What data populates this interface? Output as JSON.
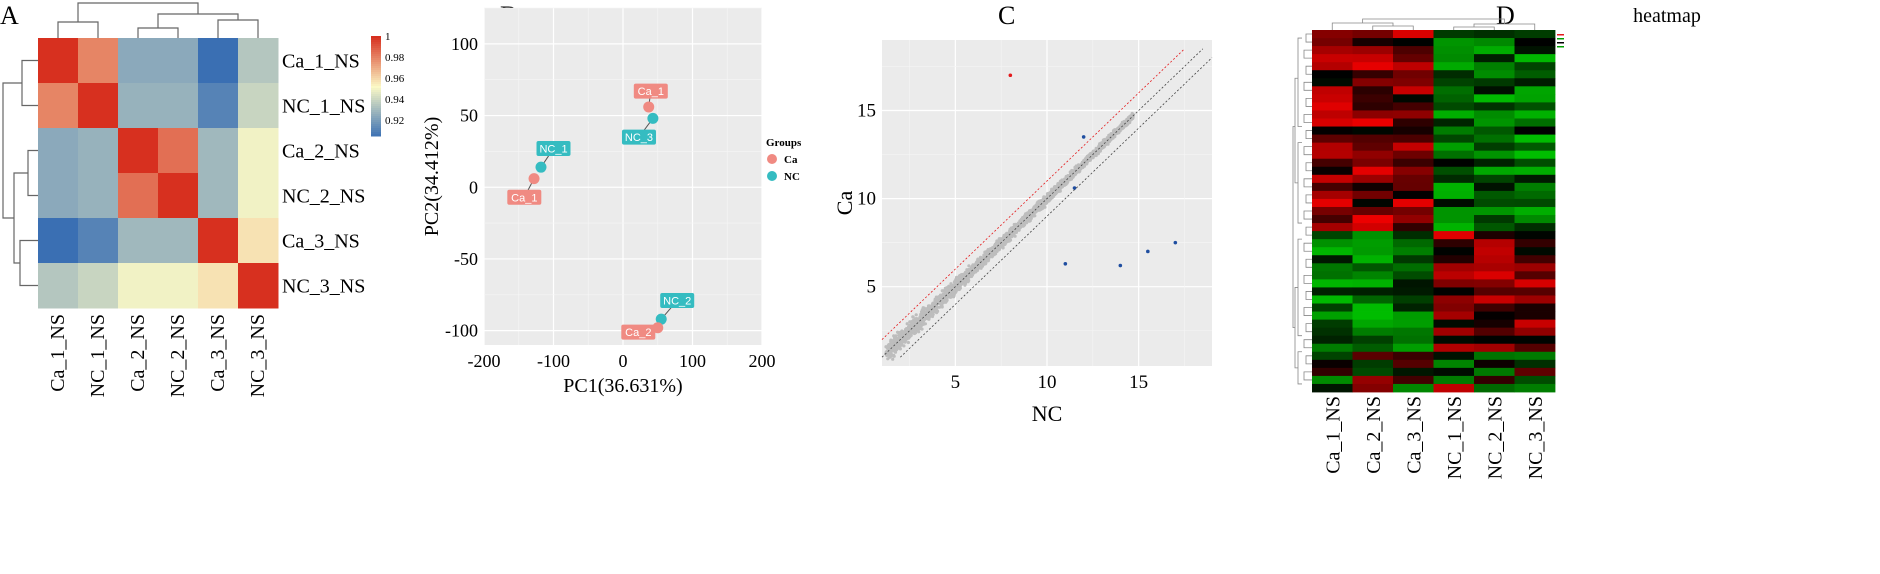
{
  "chart_data": [
    {
      "panel": "A",
      "type": "heatmap",
      "row_labels": [
        "Ca_1_NS",
        "NC_1_NS",
        "Ca_2_NS",
        "NC_2_NS",
        "Ca_3_NS",
        "NC_3_NS"
      ],
      "col_labels": [
        "Ca_1_NS",
        "NC_1_NS",
        "Ca_2_NS",
        "NC_2_NS",
        "Ca_3_NS",
        "NC_3_NS"
      ],
      "values": [
        [
          1.0,
          0.98,
          0.925,
          0.925,
          0.905,
          0.935
        ],
        [
          0.98,
          1.0,
          0.928,
          0.928,
          0.912,
          0.94
        ],
        [
          0.925,
          0.928,
          1.0,
          0.985,
          0.93,
          0.95
        ],
        [
          0.925,
          0.928,
          0.985,
          1.0,
          0.93,
          0.95
        ],
        [
          0.905,
          0.912,
          0.93,
          0.93,
          1.0,
          0.958
        ],
        [
          0.935,
          0.94,
          0.95,
          0.95,
          0.958,
          1.0
        ]
      ],
      "legend": {
        "ticks": [
          1,
          0.98,
          0.96,
          0.94,
          0.92
        ],
        "min": 0.905,
        "max": 1.0,
        "colors": [
          "#3a6fb3",
          "#fbf9c6",
          "#d7301f"
        ]
      }
    },
    {
      "panel": "B",
      "type": "scatter",
      "xlabel": "PC1(36.631%)",
      "ylabel": "PC2(34.412%)",
      "xlim": [
        -200,
        200
      ],
      "ylim": [
        -110,
        125
      ],
      "xticks": [
        -200,
        -100,
        0,
        100,
        200
      ],
      "yticks": [
        -100,
        -50,
        0,
        50,
        100
      ],
      "grid": true,
      "legend": {
        "title": "Groups",
        "position": "right",
        "entries": [
          {
            "name": "Ca",
            "color": "#f08a82"
          },
          {
            "name": "NC",
            "color": "#35bcc1"
          }
        ]
      },
      "points": [
        {
          "label": "Ca_1",
          "group": "Ca",
          "x": -128,
          "y": 6,
          "lx": -142,
          "ly": -7
        },
        {
          "label": "NC_1",
          "group": "NC",
          "x": -118,
          "y": 14,
          "lx": -100,
          "ly": 27
        },
        {
          "label": "Ca_1",
          "group": "Ca",
          "x": 37,
          "y": 56,
          "lx": 40,
          "ly": 67
        },
        {
          "label": "NC_3",
          "group": "NC",
          "x": 43,
          "y": 48,
          "lx": 23,
          "ly": 35
        },
        {
          "label": "NC_2",
          "group": "NC",
          "x": 55,
          "y": -92,
          "lx": 78,
          "ly": -79
        },
        {
          "label": "Ca_2",
          "group": "Ca",
          "x": 50,
          "y": -98,
          "lx": 22,
          "ly": -101
        }
      ]
    },
    {
      "panel": "C",
      "type": "scatter",
      "xlabel": "NC",
      "ylabel": "Ca",
      "xlim": [
        1,
        19
      ],
      "ylim": [
        0.5,
        19
      ],
      "xticks": [
        5,
        10,
        15
      ],
      "yticks": [
        5,
        10,
        15
      ],
      "grid": true,
      "colors": {
        "up": "#e41a1c",
        "down": "#1f4ea0",
        "none": "#bdbdbd"
      },
      "outliers": [
        {
          "x": 8,
          "y": 17,
          "type": "up"
        },
        {
          "x": 17,
          "y": 7.5,
          "type": "down"
        },
        {
          "x": 15.5,
          "y": 7,
          "type": "down"
        },
        {
          "x": 14,
          "y": 6.2,
          "type": "down"
        },
        {
          "x": 11,
          "y": 6.3,
          "type": "down"
        },
        {
          "x": 12,
          "y": 13.5,
          "type": "down"
        },
        {
          "x": 11.5,
          "y": 10.6,
          "type": "down"
        }
      ]
    },
    {
      "panel": "D",
      "type": "heatmap",
      "title": "heatmap",
      "col_labels": [
        "Ca_1_NS",
        "Ca_2_NS",
        "Ca_3_NS",
        "NC_1_NS",
        "NC_2_NS",
        "NC_3_NS"
      ],
      "rows": 45,
      "colors": [
        "#00c000",
        "#000000",
        "#ff0000"
      ]
    }
  ],
  "panels": {
    "a": "A",
    "b": "B",
    "c": "C",
    "d": "D"
  }
}
